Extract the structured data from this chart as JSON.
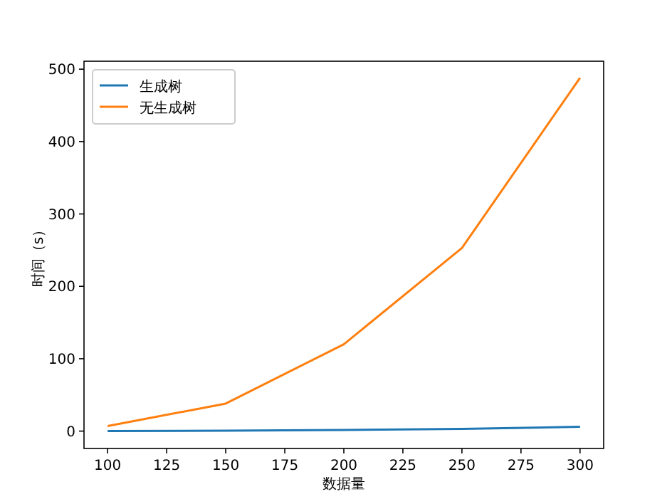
{
  "chart_data": {
    "type": "line",
    "xlabel": "数据量",
    "ylabel": "时间（s）",
    "x": [
      100,
      150,
      200,
      250,
      300
    ],
    "series": [
      {
        "name": "生成树",
        "color": "#1f77b4",
        "values": [
          0,
          0.5,
          1.5,
          3,
          6
        ]
      },
      {
        "name": "无生成树",
        "color": "#ff7f0e",
        "values": [
          7,
          38,
          120,
          253,
          488
        ]
      }
    ],
    "xlim": [
      90,
      310
    ],
    "xticks": [
      100,
      125,
      150,
      175,
      200,
      225,
      250,
      275,
      300
    ],
    "ylim": [
      -24,
      511
    ],
    "yticks": [
      0,
      100,
      200,
      300,
      400,
      500
    ],
    "legend": "top left",
    "grid": false,
    "marker": "none",
    "line_style": "solid"
  }
}
